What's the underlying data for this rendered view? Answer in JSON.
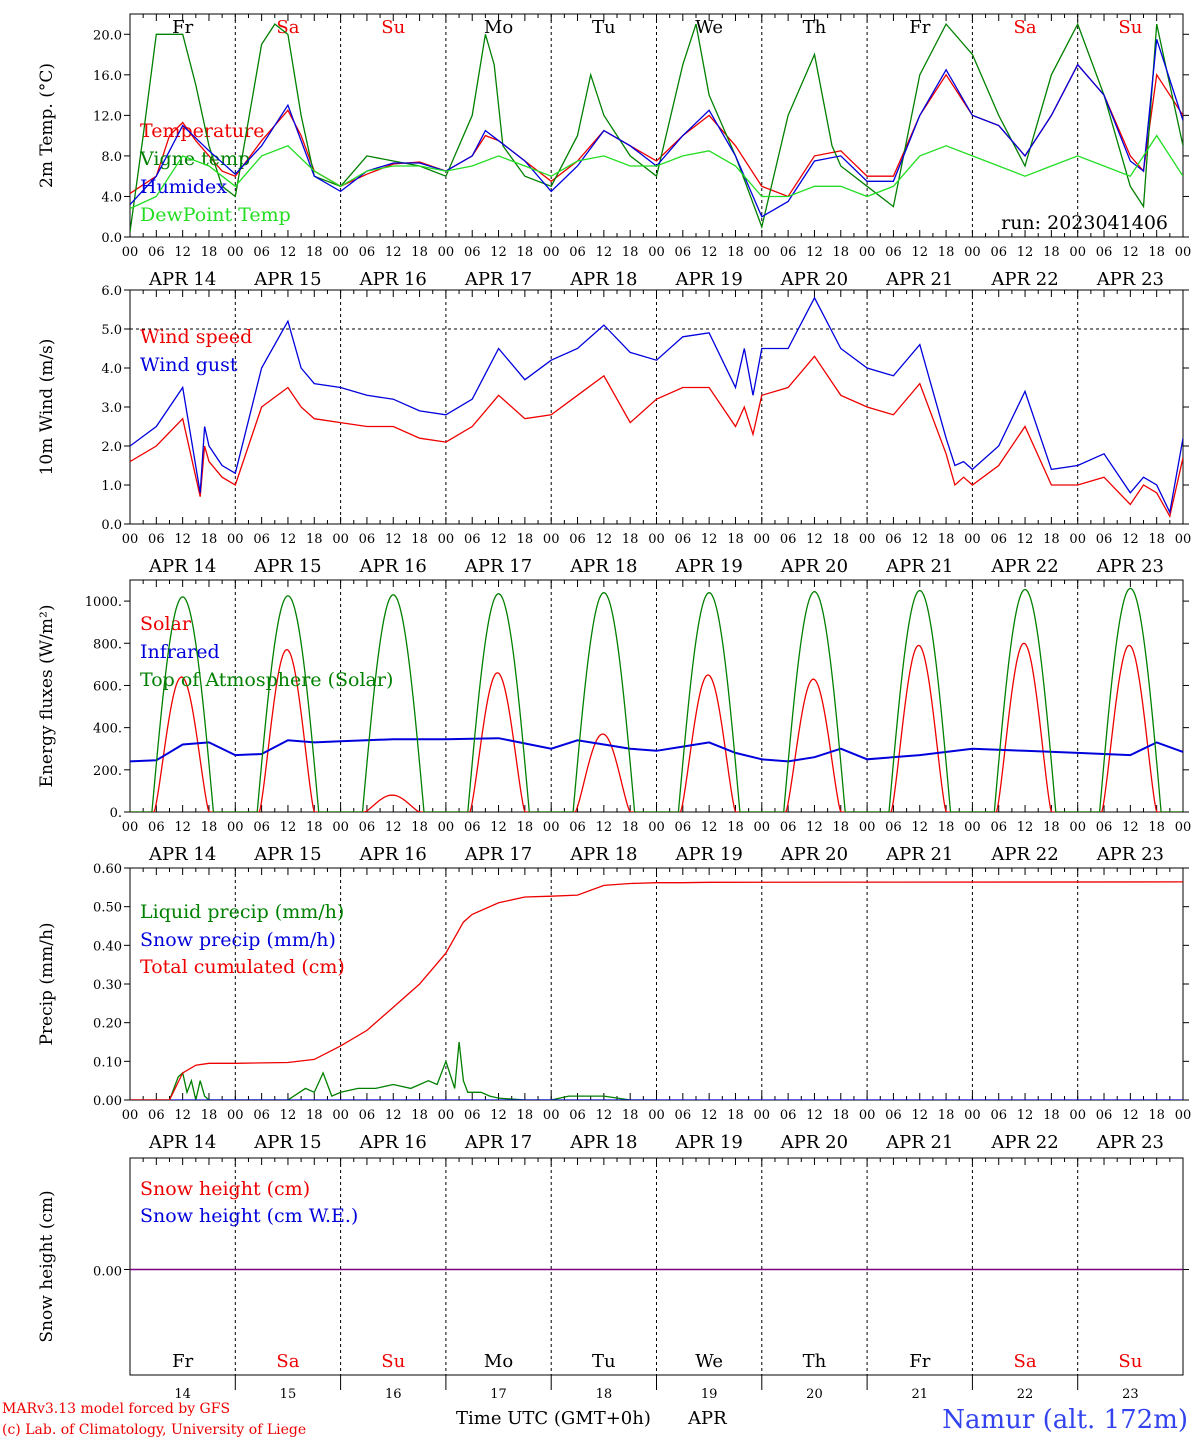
{
  "station": "Namur (alt. 172m)",
  "run": "run: 2023041406",
  "credits": [
    "MARv3.13 model forced by GFS",
    "(c) Lab. of Climatology, University of Liege"
  ],
  "xaxis_title": "Time UTC (GMT+0h)",
  "month": "APR",
  "hour_ticks": [
    "00",
    "06",
    "12",
    "18"
  ],
  "dates": [
    "APR 14",
    "APR 15",
    "APR 16",
    "APR 17",
    "APR 18",
    "APR 19",
    "APR 20",
    "APR 21",
    "APR 22",
    "APR 23"
  ],
  "day_numbers": [
    "14",
    "15",
    "16",
    "17",
    "18",
    "19",
    "20",
    "21",
    "22",
    "23"
  ],
  "day_names": [
    "Fr",
    "Sa",
    "Su",
    "Mo",
    "Tu",
    "We",
    "Th",
    "Fr",
    "Sa",
    "Su"
  ],
  "day_colors": [
    "#000000",
    "#ee0000",
    "#ee0000",
    "#000000",
    "#000000",
    "#000000",
    "#000000",
    "#000000",
    "#ee0000",
    "#ee0000"
  ],
  "colors": {
    "red": "#ee0000",
    "green": "#008000",
    "blue": "#0000dd",
    "lightgreen": "#22dd22",
    "purple": "#800080"
  },
  "chart_data": [
    {
      "type": "line",
      "id": "temp",
      "ylabel": "2m Temp. (°C)",
      "ylim": [
        0,
        22
      ],
      "yticks": [
        "0.0",
        "4.0",
        "8.0",
        "12.0",
        "16.0",
        "20.0"
      ],
      "x_unit": "hours since APR 14 00 UTC",
      "series": [
        {
          "name": "Temperature",
          "color": "#ee0000",
          "x": [
            0,
            6,
            9,
            12,
            15,
            18,
            21,
            24,
            30,
            36,
            39,
            42,
            48,
            54,
            60,
            66,
            72,
            78,
            81,
            84,
            90,
            96,
            102,
            108,
            114,
            120,
            126,
            132,
            138,
            144,
            150,
            156,
            162,
            168,
            174,
            180,
            186,
            192,
            198,
            204,
            210,
            216,
            222,
            228,
            231,
            234,
            240
          ],
          "y": [
            4.3,
            6,
            10,
            11.3,
            9.5,
            8,
            6.5,
            6,
            9.5,
            12.5,
            10,
            6.5,
            5,
            6.2,
            7.2,
            7.4,
            6.5,
            8,
            10,
            9.5,
            7.5,
            5.5,
            7.5,
            10.5,
            9,
            7.5,
            10,
            12,
            9,
            5,
            4,
            8,
            8.5,
            6,
            6,
            12,
            16,
            12,
            11,
            8,
            12,
            17,
            14,
            8,
            6.5,
            16,
            12
          ]
        },
        {
          "name": "Vigne temp",
          "color": "#008000",
          "x": [
            0,
            3,
            6,
            9,
            12,
            15,
            18,
            21,
            24,
            30,
            33,
            36,
            39,
            42,
            48,
            54,
            60,
            66,
            72,
            78,
            81,
            83,
            85,
            90,
            96,
            102,
            105,
            108,
            114,
            120,
            126,
            129,
            132,
            138,
            144,
            150,
            156,
            160,
            162,
            168,
            174,
            180,
            186,
            192,
            198,
            204,
            210,
            216,
            222,
            228,
            231,
            234,
            240
          ],
          "y": [
            0.5,
            10,
            20,
            20,
            20,
            15,
            9,
            5,
            4,
            19,
            21,
            20,
            12,
            6,
            5,
            8,
            7.5,
            7,
            6,
            12,
            20,
            17,
            9,
            6,
            5,
            10,
            16,
            12,
            8,
            6,
            17,
            21,
            14,
            8,
            1,
            12,
            18,
            9,
            7,
            5,
            3,
            16,
            21,
            18,
            12,
            7,
            16,
            21,
            14,
            5,
            3,
            21,
            9
          ]
        },
        {
          "name": "Humidex",
          "color": "#0000dd",
          "x": [
            0,
            6,
            12,
            18,
            24,
            30,
            36,
            42,
            48,
            54,
            60,
            66,
            72,
            78,
            81,
            84,
            90,
            96,
            102,
            108,
            114,
            120,
            126,
            132,
            138,
            144,
            150,
            156,
            162,
            168,
            174,
            180,
            186,
            192,
            198,
            204,
            210,
            216,
            222,
            228,
            231,
            234,
            240
          ],
          "y": [
            3.2,
            6,
            11,
            8.5,
            6.2,
            9,
            13,
            6,
            4.5,
            6.5,
            7.3,
            7.3,
            6.5,
            8,
            10.5,
            9.5,
            7.5,
            4.5,
            7,
            10.5,
            9,
            7,
            10,
            12.5,
            8,
            2,
            3.5,
            7.5,
            8,
            5.5,
            5.5,
            12,
            16.5,
            12,
            11,
            8,
            12,
            17,
            14,
            7.5,
            6.5,
            19.5,
            11.5
          ]
        },
        {
          "name": "DewPoint Temp",
          "color": "#22dd22",
          "x": [
            0,
            6,
            12,
            18,
            24,
            30,
            36,
            42,
            48,
            54,
            60,
            66,
            72,
            78,
            84,
            90,
            96,
            102,
            108,
            114,
            120,
            126,
            132,
            138,
            144,
            150,
            156,
            162,
            168,
            174,
            180,
            186,
            192,
            198,
            204,
            210,
            216,
            222,
            228,
            234,
            240
          ],
          "y": [
            2.8,
            4,
            8,
            7,
            5,
            8,
            9,
            6.5,
            5,
            6.5,
            7,
            7,
            6.5,
            7,
            8,
            7,
            6,
            7.5,
            8,
            7,
            7,
            8,
            8.5,
            7,
            4,
            4,
            5,
            5,
            4,
            5,
            8,
            9,
            8,
            7,
            6,
            7,
            8,
            7,
            6,
            10,
            6
          ]
        }
      ]
    },
    {
      "type": "line",
      "id": "wind",
      "ylabel": "10m Wind (m/s)",
      "ylim": [
        0,
        6
      ],
      "yticks": [
        "0.0",
        "1.0",
        "2.0",
        "3.0",
        "4.0",
        "5.0",
        "6.0"
      ],
      "x_unit": "hours since APR 14 00 UTC",
      "series": [
        {
          "name": "Wind speed",
          "color": "#ee0000",
          "x": [
            0,
            6,
            12,
            16,
            17,
            18,
            21,
            24,
            30,
            36,
            39,
            42,
            48,
            54,
            60,
            66,
            72,
            78,
            84,
            90,
            96,
            102,
            108,
            114,
            120,
            126,
            132,
            138,
            140,
            142,
            144,
            150,
            156,
            162,
            168,
            174,
            180,
            186,
            188,
            190,
            192,
            198,
            204,
            210,
            216,
            222,
            228,
            231,
            234,
            237,
            240
          ],
          "y": [
            1.6,
            2,
            2.7,
            0.7,
            2,
            1.6,
            1.2,
            1,
            3,
            3.5,
            3,
            2.7,
            2.6,
            2.5,
            2.5,
            2.2,
            2.1,
            2.5,
            3.3,
            2.7,
            2.8,
            3.3,
            3.8,
            2.6,
            3.2,
            3.5,
            3.5,
            2.5,
            3,
            2.3,
            3.3,
            3.5,
            4.3,
            3.3,
            3,
            2.8,
            3.6,
            1.8,
            1,
            1.2,
            1,
            1.5,
            2.5,
            1,
            1,
            1.2,
            0.5,
            1,
            0.8,
            0.2,
            1.7
          ]
        },
        {
          "name": "Wind gust",
          "color": "#0000dd",
          "x": [
            0,
            6,
            12,
            16,
            17,
            18,
            21,
            24,
            30,
            36,
            39,
            42,
            48,
            54,
            60,
            66,
            72,
            78,
            84,
            90,
            96,
            102,
            108,
            114,
            120,
            126,
            132,
            138,
            140,
            142,
            144,
            150,
            156,
            162,
            168,
            174,
            180,
            186,
            188,
            190,
            192,
            198,
            204,
            210,
            216,
            222,
            228,
            231,
            234,
            237,
            240
          ],
          "y": [
            2,
            2.5,
            3.5,
            0.8,
            2.5,
            2,
            1.5,
            1.3,
            4,
            5.2,
            4,
            3.6,
            3.5,
            3.3,
            3.2,
            2.9,
            2.8,
            3.2,
            4.5,
            3.7,
            4.2,
            4.5,
            5.1,
            4.4,
            4.2,
            4.8,
            4.9,
            3.5,
            4.5,
            3.3,
            4.5,
            4.5,
            5.8,
            4.5,
            4,
            3.8,
            4.6,
            2.2,
            1.5,
            1.6,
            1.4,
            2,
            3.4,
            1.4,
            1.5,
            1.8,
            0.8,
            1.2,
            1,
            0.3,
            2.2
          ]
        }
      ]
    },
    {
      "type": "line",
      "id": "flux",
      "ylabel": "Energy fluxes (W/m²)",
      "ylim": [
        0,
        1100
      ],
      "yticks": [
        "0.",
        "200.",
        "400.",
        "600.",
        "800.",
        "1000."
      ],
      "x_unit": "hours since APR 14 00 UTC",
      "series": [
        {
          "name": "Solar",
          "color": "#ee0000",
          "daily_peak": [
            640,
            770,
            80,
            660,
            370,
            650,
            630,
            790,
            800,
            790
          ]
        },
        {
          "name": "Infrared",
          "color": "#0000dd",
          "x": [
            0,
            6,
            12,
            18,
            24,
            30,
            36,
            42,
            48,
            60,
            72,
            84,
            96,
            102,
            108,
            114,
            120,
            126,
            132,
            138,
            144,
            150,
            156,
            162,
            168,
            180,
            192,
            204,
            216,
            228,
            234,
            240
          ],
          "y": [
            240,
            245,
            320,
            330,
            270,
            275,
            340,
            330,
            335,
            345,
            345,
            350,
            300,
            340,
            320,
            300,
            290,
            310,
            330,
            280,
            250,
            240,
            260,
            300,
            250,
            270,
            300,
            290,
            280,
            270,
            330,
            285
          ]
        },
        {
          "name": "Top of Atmosphere (Solar)",
          "color": "#008000",
          "daily_peak": [
            1020,
            1025,
            1030,
            1035,
            1040,
            1040,
            1045,
            1050,
            1055,
            1060
          ]
        }
      ]
    },
    {
      "type": "line",
      "id": "precip",
      "ylabel": "Precip (mm/h)",
      "ylim": [
        0,
        0.6
      ],
      "yticks": [
        "0.00",
        "0.10",
        "0.20",
        "0.30",
        "0.40",
        "0.50",
        "0.60"
      ],
      "x_unit": "hours since APR 14 00 UTC",
      "series": [
        {
          "name": "Liquid precip (mm/h)",
          "color": "#008000",
          "x": [
            0,
            9,
            10,
            11,
            12,
            13,
            14,
            15,
            16,
            17,
            18,
            24,
            36,
            40,
            42,
            44,
            46,
            48,
            52,
            56,
            60,
            64,
            68,
            70,
            72,
            74,
            75,
            76,
            77,
            78,
            80,
            82,
            84,
            90,
            96,
            100,
            104,
            108,
            114,
            120
          ],
          "y": [
            0,
            0,
            0.03,
            0.06,
            0.07,
            0.02,
            0.05,
            0,
            0.05,
            0.01,
            0,
            0,
            0,
            0.03,
            0.02,
            0.07,
            0.01,
            0.02,
            0.03,
            0.03,
            0.04,
            0.03,
            0.05,
            0.04,
            0.1,
            0.03,
            0.15,
            0.05,
            0.02,
            0.02,
            0.02,
            0.01,
            0.005,
            0,
            0,
            0.01,
            0.01,
            0.01,
            0,
            0
          ]
        },
        {
          "name": "Snow precip (mm/h)",
          "color": "#0000dd",
          "x": [
            0,
            240
          ],
          "y": [
            0,
            0
          ]
        },
        {
          "name": "Total cumulated (cm)",
          "color": "#ee0000",
          "x": [
            0,
            9,
            12,
            15,
            18,
            24,
            36,
            42,
            48,
            54,
            60,
            66,
            72,
            74,
            76,
            78,
            84,
            90,
            96,
            102,
            108,
            114,
            120,
            126,
            132,
            240
          ],
          "y": [
            0,
            0,
            0.07,
            0.09,
            0.095,
            0.095,
            0.097,
            0.105,
            0.14,
            0.18,
            0.24,
            0.3,
            0.38,
            0.42,
            0.46,
            0.48,
            0.51,
            0.525,
            0.527,
            0.53,
            0.555,
            0.56,
            0.562,
            0.562,
            0.563,
            0.564
          ]
        }
      ]
    },
    {
      "type": "line",
      "id": "snow",
      "ylabel": "Snow height (cm)",
      "yticks": [
        "0.00"
      ],
      "x_unit": "hours since APR 14 00 UTC",
      "series": [
        {
          "name": "Snow height (cm)",
          "color": "#ee0000",
          "x": [
            0,
            240
          ],
          "y": [
            0,
            0
          ]
        },
        {
          "name": "Snow height (cm W.E.)",
          "color": "#0000dd",
          "x": [
            0,
            240
          ],
          "y": [
            0,
            0
          ]
        }
      ]
    }
  ]
}
